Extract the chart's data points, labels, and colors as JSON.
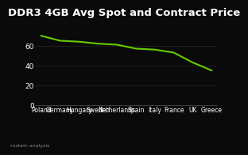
{
  "title": "DDR3 4GB Avg Spot and Contract Price",
  "categories": [
    "Poland",
    "Germany",
    "Hungary",
    "Sweden",
    "Netherlands",
    "Spain",
    "Italy",
    "France",
    "UK",
    "Greece"
  ],
  "values": [
    70,
    65,
    64,
    62,
    61,
    57,
    56,
    53,
    43,
    35
  ],
  "line_color": "#66cc00",
  "bg_color": "#0a0a0a",
  "text_color": "#ffffff",
  "grid_color": "#2a2a2a",
  "yticks": [
    0,
    20,
    40,
    60
  ],
  "ylim": [
    0,
    82
  ],
  "ylabel_fontsize": 6.5,
  "xlabel_fontsize": 5.5,
  "title_fontsize": 9.5,
  "source_text": "rnstein analysis"
}
